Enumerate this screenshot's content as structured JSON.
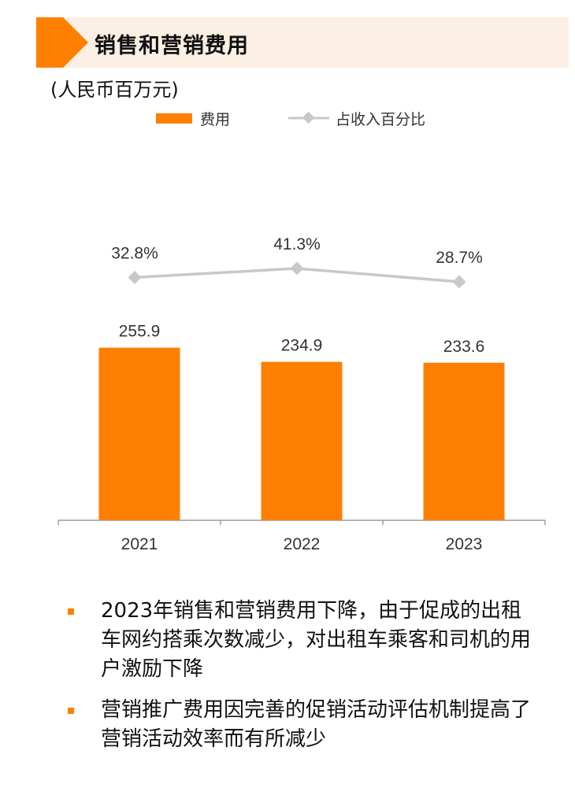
{
  "header": {
    "title": "销售和营销费用",
    "unit": "(人民币百万元)"
  },
  "legend": {
    "bar_label": "费用",
    "line_label": "占收入百分比"
  },
  "colors": {
    "accent": "#ff8000",
    "header_bg": "#fbeee3",
    "line": "#c8c8c8",
    "axis": "#888888"
  },
  "chart_data": {
    "type": "bar",
    "categories": [
      "2021",
      "2022",
      "2023"
    ],
    "series": [
      {
        "name": "费用",
        "type": "bar",
        "values": [
          255.9,
          234.9,
          233.6
        ],
        "labels": [
          "255.9",
          "234.9",
          "233.6"
        ]
      },
      {
        "name": "占收入百分比",
        "type": "line",
        "values": [
          32.8,
          41.3,
          28.7
        ],
        "labels": [
          "32.8%",
          "41.3%",
          "28.7%"
        ]
      }
    ],
    "ylim": [
      0,
      355
    ],
    "xlabel": "",
    "ylabel": ""
  },
  "bullets": [
    "2023年销售和营销费用下降，由于促成的出租车网约搭乘次数减少，对出租车乘客和司机的用户激励下降",
    "营销推广费用因完善的促销活动评估机制提高了营销活动效率而有所减少"
  ]
}
